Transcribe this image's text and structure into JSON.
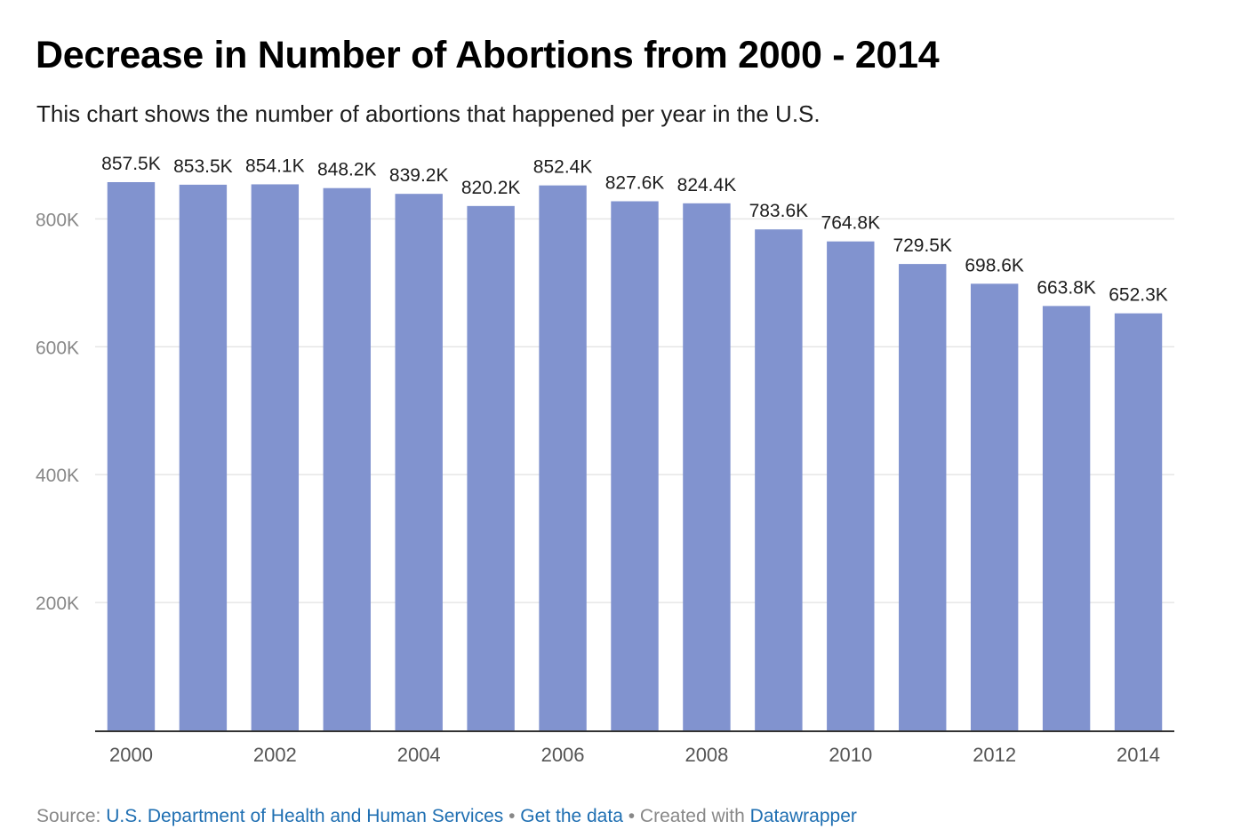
{
  "header": {
    "title": "Decrease in Number of Abortions from 2000 - 2014",
    "subtitle": "This chart shows the number of abortions that happened per year in the U.S."
  },
  "footer": {
    "source_prefix": "Source: ",
    "source_link": "U.S. Department of Health and Human Services",
    "separator": " • ",
    "get_data": "Get the data",
    "created_with": "Created with ",
    "datawrapper": "Datawrapper"
  },
  "colors": {
    "bar": "#8193cf",
    "gridline": "#e6e6e6",
    "axis": "#333333",
    "tick_text": "#888888",
    "label_text": "#1d1d1d",
    "link": "#1f6fb2"
  },
  "chart_data": {
    "type": "bar",
    "title": "Decrease in Number of Abortions from 2000 - 2014",
    "subtitle": "This chart shows the number of abortions that happened per year in the U.S.",
    "xlabel": "",
    "ylabel": "",
    "categories": [
      "2000",
      "2001",
      "2002",
      "2003",
      "2004",
      "2005",
      "2006",
      "2007",
      "2008",
      "2009",
      "2010",
      "2011",
      "2012",
      "2013",
      "2014"
    ],
    "values": [
      857500,
      853500,
      854100,
      848200,
      839200,
      820200,
      852400,
      827600,
      824400,
      783600,
      764800,
      729500,
      698600,
      663800,
      652300
    ],
    "data_labels": [
      "857.5K",
      "853.5K",
      "854.1K",
      "848.2K",
      "839.2K",
      "820.2K",
      "852.4K",
      "827.6K",
      "824.4K",
      "783.6K",
      "764.8K",
      "729.5K",
      "698.6K",
      "663.8K",
      "652.3K"
    ],
    "x_tick_labels": [
      "2000",
      "",
      "2002",
      "",
      "2004",
      "",
      "2006",
      "",
      "2008",
      "",
      "2010",
      "",
      "2012",
      "",
      "2014"
    ],
    "y_ticks": [
      200000,
      400000,
      600000,
      800000
    ],
    "y_tick_labels": [
      "200K",
      "400K",
      "600K",
      "800K"
    ],
    "ylim": [
      0,
      857500
    ],
    "grid": true,
    "legend": "none"
  }
}
